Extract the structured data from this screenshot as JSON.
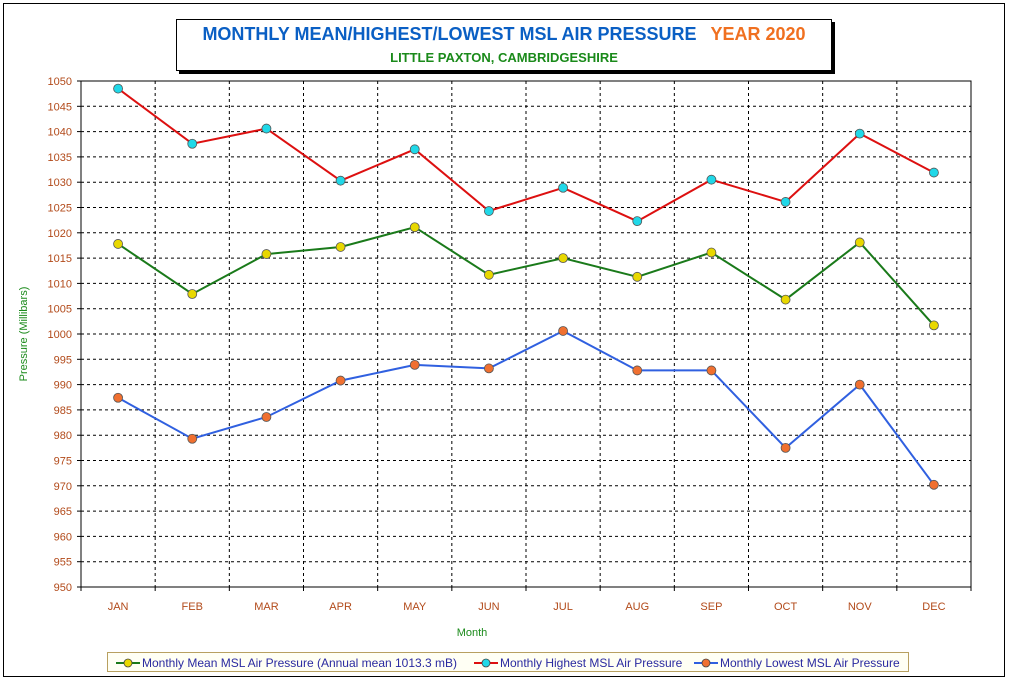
{
  "header": {
    "title": "MONTHLY MEAN/HIGHEST/LOWEST MSL AIR PRESSURE",
    "year_label": "YEAR 2020",
    "subtitle": "LITTLE PAXTON, CAMBRIDGESHIRE"
  },
  "colors": {
    "title": "#0a5fc4",
    "year": "#f07020",
    "subtitle": "#1a8a1a",
    "axis_labels": "#b24a1a",
    "axis_titles": "#1a8a1a",
    "legend_text": "#2a2aa0",
    "mean_line": "#1a7a1a",
    "mean_marker": "#e8d800",
    "highest_line": "#dd1010",
    "highest_marker": "#20d8e8",
    "lowest_line": "#3060e0",
    "lowest_marker": "#f07030"
  },
  "chart_data": {
    "type": "line",
    "xlabel": "Month",
    "ylabel": "Pressure (Millibars)",
    "ylim": [
      950,
      1050
    ],
    "ytick_step": 5,
    "grid": true,
    "legend_position": "bottom",
    "categories": [
      "JAN",
      "FEB",
      "MAR",
      "APR",
      "MAY",
      "JUN",
      "JUL",
      "AUG",
      "SEP",
      "OCT",
      "NOV",
      "DEC"
    ],
    "series": [
      {
        "name": "Monthly Mean MSL Air Pressure (Annual mean 1013.3 mB)",
        "key": "mean",
        "values": [
          1017.8,
          1007.9,
          1015.8,
          1017.2,
          1021.1,
          1011.7,
          1015.0,
          1011.3,
          1016.1,
          1006.8,
          1018.1,
          1001.7
        ]
      },
      {
        "name": "Monthly Highest MSL Air Pressure",
        "key": "highest",
        "values": [
          1048.5,
          1037.6,
          1040.6,
          1030.3,
          1036.5,
          1024.3,
          1028.9,
          1022.3,
          1030.5,
          1026.1,
          1039.6,
          1031.9
        ]
      },
      {
        "name": "Monthly Lowest MSL Air Pressure",
        "key": "lowest",
        "values": [
          987.4,
          979.3,
          983.6,
          990.8,
          993.9,
          993.2,
          1000.6,
          992.8,
          992.8,
          977.5,
          990.0,
          970.2
        ]
      }
    ]
  }
}
